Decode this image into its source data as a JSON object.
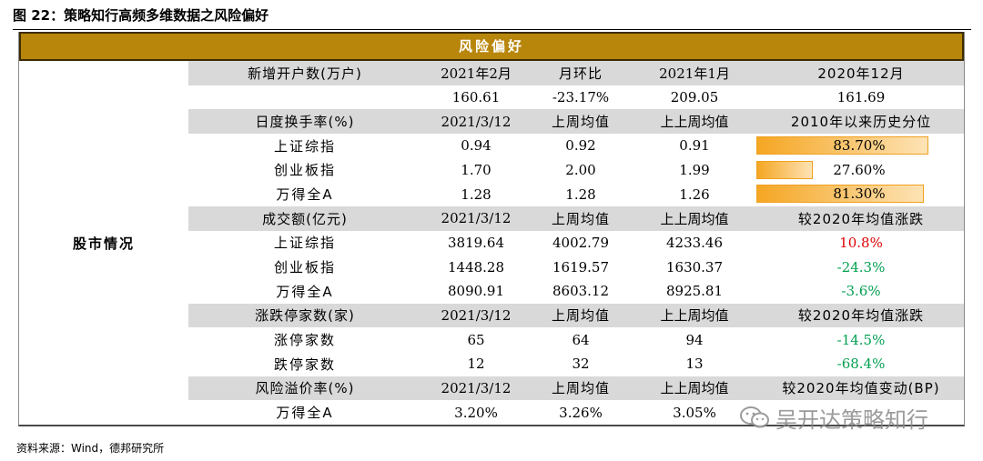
{
  "figure_title": "图 22：策略知行高频多维数据之风险偏好",
  "banner": "风险偏好",
  "section_label": "股市情况",
  "source": "资料来源：Wind，德邦研究所",
  "watermark": "吴开达策略知行",
  "bar_color": "#f5a623",
  "rows": [
    {
      "type": "header",
      "c0": "新增开户数(万户)",
      "c1": "2021年2月",
      "c2": "月环比",
      "c3": "2021年1月",
      "c4": "2020年12月"
    },
    {
      "type": "data",
      "c0": "",
      "c1": "160.61",
      "c2": "-23.17%",
      "c3": "209.05",
      "c4": "161.69"
    },
    {
      "type": "header",
      "c0": "日度换手率(%)",
      "c1": "2021/3/12",
      "c2": "上周均值",
      "c3": "上上周均值",
      "c4": "2010年以来历史分位"
    },
    {
      "type": "bar",
      "c0": "上证综指",
      "c1": "0.94",
      "c2": "0.92",
      "c3": "0.91",
      "c4": "83.70%",
      "pct": 0.837
    },
    {
      "type": "bar",
      "c0": "创业板指",
      "c1": "1.70",
      "c2": "2.00",
      "c3": "1.99",
      "c4": "27.60%",
      "pct": 0.276
    },
    {
      "type": "bar",
      "c0": "万得全A",
      "c1": "1.28",
      "c2": "1.28",
      "c3": "1.26",
      "c4": "81.30%",
      "pct": 0.813
    },
    {
      "type": "header",
      "c0": "成交额(亿元)",
      "c1": "2021/3/12",
      "c2": "上周均值",
      "c3": "上上周均值",
      "c4": "较2020年均值涨跌"
    },
    {
      "type": "data",
      "c0": "上证综指",
      "c1": "3819.64",
      "c2": "4002.79",
      "c3": "4233.46",
      "c4": "10.8%",
      "c4_color": "red"
    },
    {
      "type": "data",
      "c0": "创业板指",
      "c1": "1448.28",
      "c2": "1619.57",
      "c3": "1630.37",
      "c4": "-24.3%",
      "c4_color": "green"
    },
    {
      "type": "data",
      "c0": "万得全A",
      "c1": "8090.91",
      "c2": "8603.12",
      "c3": "8925.81",
      "c4": "-3.6%",
      "c4_color": "green"
    },
    {
      "type": "header",
      "c0": "涨跌停家数(家)",
      "c1": "2021/3/12",
      "c2": "上周均值",
      "c3": "上上周均值",
      "c4": "较2020年均值涨跌"
    },
    {
      "type": "data",
      "c0": "涨停家数",
      "c1": "65",
      "c2": "64",
      "c3": "94",
      "c4": "-14.5%",
      "c4_color": "green"
    },
    {
      "type": "data",
      "c0": "跌停家数",
      "c1": "12",
      "c2": "32",
      "c3": "13",
      "c4": "-68.4%",
      "c4_color": "green"
    },
    {
      "type": "header",
      "c0": "风险溢价率(%)",
      "c1": "2021/3/12",
      "c2": "上周均值",
      "c3": "上上周均值",
      "c4": "较2020年均值变动(BP)"
    },
    {
      "type": "data",
      "c0": "万得全A",
      "c1": "3.20%",
      "c2": "3.26%",
      "c3": "3.05%",
      "c4": ""
    }
  ]
}
